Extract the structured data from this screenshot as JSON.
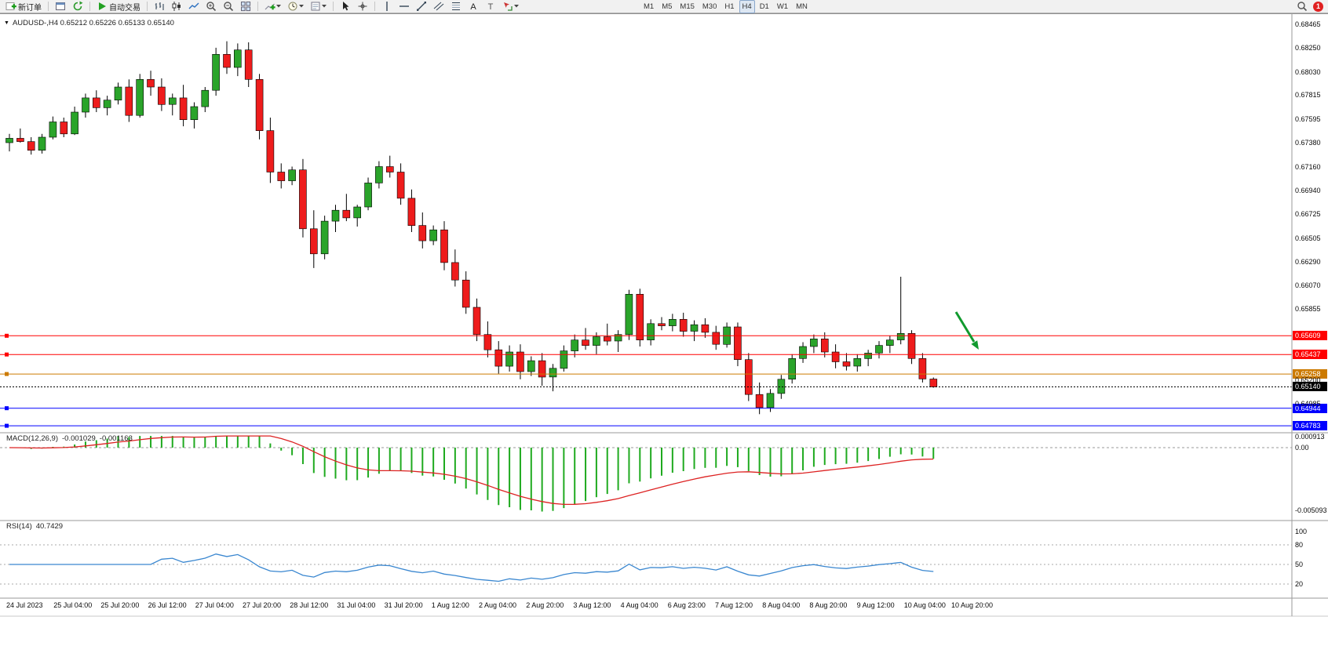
{
  "toolbar": {
    "groups": [
      {
        "items": [
          {
            "name": "new-order-button",
            "icon": "new-order",
            "label": "新订单"
          }
        ]
      },
      {
        "items": [
          {
            "name": "charts-window-button",
            "icon": "window"
          },
          {
            "name": "refresh-button",
            "icon": "refresh"
          }
        ]
      },
      {
        "items": [
          {
            "name": "autotrading-button",
            "icon": "play",
            "label": "自动交易"
          }
        ]
      },
      {
        "items": [
          {
            "name": "bar-chart-button",
            "icon": "bar-chart"
          },
          {
            "name": "candlestick-chart-button",
            "icon": "candle"
          },
          {
            "name": "line-chart-button",
            "icon": "line-chart"
          },
          {
            "name": "zoom-in-button",
            "icon": "zoom-in"
          },
          {
            "name": "zoom-out-button",
            "icon": "zoom-out"
          },
          {
            "name": "tile-windows-button",
            "icon": "tile"
          }
        ]
      },
      {
        "items": [
          {
            "name": "indicators-button",
            "icon": "ind-add",
            "caret": true
          },
          {
            "name": "periods-button",
            "icon": "clock",
            "caret": true
          },
          {
            "name": "templates-button",
            "icon": "template",
            "caret": true
          }
        ]
      },
      {
        "items": [
          {
            "name": "cursor-button",
            "icon": "cursor"
          },
          {
            "name": "crosshair-button",
            "icon": "crosshair"
          }
        ]
      },
      {
        "items": [
          {
            "name": "vertical-line-button",
            "icon": "vline"
          },
          {
            "name": "horizontal-line-button",
            "icon": "hline"
          },
          {
            "name": "trendline-button",
            "icon": "trend"
          },
          {
            "name": "channel-button",
            "icon": "channel"
          },
          {
            "name": "fibonacci-button",
            "icon": "fib"
          },
          {
            "name": "text-button",
            "icon": "text"
          },
          {
            "name": "text-label-button",
            "icon": "label"
          },
          {
            "name": "arrows-button",
            "icon": "arrows",
            "caret": true
          }
        ]
      },
      {
        "spacer": 150,
        "items": [
          {
            "name": "timeframe-m1",
            "text": "M1"
          },
          {
            "name": "timeframe-m5",
            "text": "M5"
          },
          {
            "name": "timeframe-m15",
            "text": "M15"
          },
          {
            "name": "timeframe-m30",
            "text": "M30"
          },
          {
            "name": "timeframe-h1",
            "text": "H1"
          },
          {
            "name": "timeframe-h4",
            "text": "H4",
            "active": true
          },
          {
            "name": "timeframe-d1",
            "text": "D1"
          },
          {
            "name": "timeframe-w1",
            "text": "W1"
          },
          {
            "name": "timeframe-mn",
            "text": "MN"
          }
        ]
      }
    ],
    "right_buttons": [
      {
        "name": "search-button",
        "icon": "search"
      }
    ],
    "notification_count": "1",
    "timeframe_active": "H4"
  },
  "chart": {
    "symbol_header": "AUDUSD-,H4  0.65212 0.65226 0.65133 0.65140",
    "colors": {
      "bull": "#2aa42a",
      "bear": "#ee1c1c",
      "wick": "#000000"
    },
    "y_axis_ticks": [
      "0.68465",
      "0.68250",
      "0.68030",
      "0.67815",
      "0.67595",
      "0.67380",
      "0.67160",
      "0.66940",
      "0.66725",
      "0.66505",
      "0.66290",
      "0.66070",
      "0.65855",
      "0.65200",
      "0.64985"
    ],
    "price_lines": [
      {
        "text": "0.65609",
        "price": 0.65609,
        "color": "#ff0000",
        "style": "solid",
        "marker": true
      },
      {
        "text": "0.65437",
        "price": 0.65437,
        "color": "#ff0000",
        "style": "solid",
        "marker": true
      },
      {
        "text": "0.65258",
        "price": 0.65258,
        "color": "#cc7a00",
        "style": "solid",
        "marker": true
      },
      {
        "text": "0.65140",
        "price": 0.6514,
        "color": "#000000",
        "style": "dotted",
        "marker": false,
        "role": "bid-price"
      },
      {
        "text": "0.64944",
        "price": 0.64944,
        "color": "#0000ff",
        "style": "solid",
        "marker": true
      },
      {
        "text": "0.64783",
        "price": 0.64783,
        "color": "#0000ff",
        "style": "solid",
        "marker": true
      }
    ],
    "annotation_arrow": {
      "color": "#119a2e"
    }
  },
  "macd": {
    "name": "MACD(12,26,9)",
    "value1": "-0.001029",
    "value2": "-0.001163",
    "histogram_color": "#1faa1f",
    "signal_color": "#dd2222",
    "axis": [
      {
        "text": "0.000913",
        "value": 0.000913
      },
      {
        "text": "0.00",
        "value": 0
      },
      {
        "text": "-0.005093",
        "value": -0.005093
      }
    ]
  },
  "rsi": {
    "name": "RSI(14)",
    "value": "40.7429",
    "line_color": "#3a87d0",
    "levels": [
      80,
      50,
      20
    ],
    "axis": [
      {
        "text": "100",
        "value": 100
      },
      {
        "text": "80",
        "value": 80
      },
      {
        "text": "50",
        "value": 50
      },
      {
        "text": "20",
        "value": 20
      }
    ]
  },
  "chart_data": {
    "type": "candlestick",
    "symbol": "AUDUSD-",
    "timeframe": "H4",
    "title": "AUDUSD-,H4",
    "y_range": [
      0.6472,
      0.6853
    ],
    "x_labels": [
      "24 Jul 2023",
      "25 Jul 04:00",
      "25 Jul 20:00",
      "26 Jul 12:00",
      "27 Jul 04:00",
      "27 Jul 20:00",
      "28 Jul 12:00",
      "31 Jul 04:00",
      "31 Jul 20:00",
      "1 Aug 12:00",
      "2 Aug 04:00",
      "2 Aug 20:00",
      "3 Aug 12:00",
      "4 Aug 04:00",
      "6 Aug 23:00",
      "7 Aug 12:00",
      "8 Aug 04:00",
      "8 Aug 20:00",
      "9 Aug 12:00",
      "10 Aug 04:00",
      "10 Aug 20:00"
    ],
    "ohlc": [
      [
        0.6738,
        0.6746,
        0.673,
        0.6742
      ],
      [
        0.6742,
        0.6751,
        0.6738,
        0.6739
      ],
      [
        0.6739,
        0.6743,
        0.6727,
        0.6731
      ],
      [
        0.6731,
        0.6746,
        0.6728,
        0.6743
      ],
      [
        0.6743,
        0.6762,
        0.6741,
        0.6757
      ],
      [
        0.6757,
        0.6761,
        0.6743,
        0.6746
      ],
      [
        0.6746,
        0.6771,
        0.6745,
        0.6766
      ],
      [
        0.6766,
        0.6783,
        0.6761,
        0.6779
      ],
      [
        0.6779,
        0.6786,
        0.6766,
        0.677
      ],
      [
        0.677,
        0.6781,
        0.6763,
        0.6777
      ],
      [
        0.6777,
        0.6793,
        0.6773,
        0.6789
      ],
      [
        0.6789,
        0.6796,
        0.6757,
        0.6763
      ],
      [
        0.6763,
        0.6801,
        0.6761,
        0.6796
      ],
      [
        0.6796,
        0.6804,
        0.6781,
        0.6789
      ],
      [
        0.6789,
        0.6797,
        0.6767,
        0.6773
      ],
      [
        0.6773,
        0.6783,
        0.6763,
        0.6779
      ],
      [
        0.6779,
        0.6791,
        0.6753,
        0.6759
      ],
      [
        0.6759,
        0.6775,
        0.6751,
        0.6771
      ],
      [
        0.6771,
        0.6789,
        0.6766,
        0.6786
      ],
      [
        0.6786,
        0.6825,
        0.6781,
        0.6819
      ],
      [
        0.6819,
        0.6831,
        0.6801,
        0.6807
      ],
      [
        0.6807,
        0.6829,
        0.6799,
        0.6823
      ],
      [
        0.6823,
        0.683,
        0.6789,
        0.6796
      ],
      [
        0.6796,
        0.6801,
        0.6741,
        0.6749
      ],
      [
        0.6749,
        0.6761,
        0.6701,
        0.6711
      ],
      [
        0.6711,
        0.6719,
        0.6696,
        0.6703
      ],
      [
        0.6703,
        0.6716,
        0.6699,
        0.6713
      ],
      [
        0.6713,
        0.6723,
        0.6651,
        0.6659
      ],
      [
        0.6659,
        0.6676,
        0.6623,
        0.6636
      ],
      [
        0.6636,
        0.6671,
        0.6631,
        0.6666
      ],
      [
        0.6666,
        0.6681,
        0.6656,
        0.6676
      ],
      [
        0.6676,
        0.6691,
        0.6666,
        0.6669
      ],
      [
        0.6669,
        0.6681,
        0.6661,
        0.6679
      ],
      [
        0.6679,
        0.6706,
        0.6676,
        0.6701
      ],
      [
        0.6701,
        0.6721,
        0.6696,
        0.6716
      ],
      [
        0.6716,
        0.6726,
        0.6706,
        0.6711
      ],
      [
        0.6711,
        0.6719,
        0.6681,
        0.6687
      ],
      [
        0.6687,
        0.6695,
        0.6656,
        0.6662
      ],
      [
        0.6662,
        0.6674,
        0.6641,
        0.6648
      ],
      [
        0.6648,
        0.6662,
        0.6644,
        0.6658
      ],
      [
        0.6658,
        0.6666,
        0.6621,
        0.6628
      ],
      [
        0.6628,
        0.664,
        0.6606,
        0.6612
      ],
      [
        0.6612,
        0.662,
        0.6581,
        0.6587
      ],
      [
        0.6587,
        0.6595,
        0.6556,
        0.6562
      ],
      [
        0.6562,
        0.6574,
        0.6541,
        0.6548
      ],
      [
        0.6548,
        0.6556,
        0.6526,
        0.6533
      ],
      [
        0.6533,
        0.6552,
        0.6528,
        0.6546
      ],
      [
        0.6546,
        0.6553,
        0.6521,
        0.6528
      ],
      [
        0.6528,
        0.6542,
        0.6524,
        0.6538
      ],
      [
        0.6538,
        0.6545,
        0.6515,
        0.6523
      ],
      [
        0.6523,
        0.6535,
        0.651,
        0.6531
      ],
      [
        0.6531,
        0.6552,
        0.6528,
        0.6547
      ],
      [
        0.6547,
        0.6562,
        0.6541,
        0.6557
      ],
      [
        0.6557,
        0.6568,
        0.6548,
        0.6552
      ],
      [
        0.6552,
        0.6564,
        0.6544,
        0.656
      ],
      [
        0.656,
        0.6572,
        0.6552,
        0.6556
      ],
      [
        0.6556,
        0.6566,
        0.6546,
        0.6562
      ],
      [
        0.6562,
        0.6603,
        0.6557,
        0.6599
      ],
      [
        0.6599,
        0.6604,
        0.6551,
        0.6557
      ],
      [
        0.6557,
        0.6576,
        0.6552,
        0.6572
      ],
      [
        0.6572,
        0.6578,
        0.6566,
        0.657
      ],
      [
        0.657,
        0.6581,
        0.6565,
        0.6576
      ],
      [
        0.6576,
        0.6582,
        0.656,
        0.6565
      ],
      [
        0.6565,
        0.6575,
        0.6556,
        0.6571
      ],
      [
        0.6571,
        0.6577,
        0.6559,
        0.6564
      ],
      [
        0.6564,
        0.657,
        0.6548,
        0.6553
      ],
      [
        0.6553,
        0.6573,
        0.655,
        0.6569
      ],
      [
        0.6569,
        0.6573,
        0.6533,
        0.6539
      ],
      [
        0.6539,
        0.6545,
        0.6501,
        0.6507
      ],
      [
        0.6507,
        0.6518,
        0.6489,
        0.6495
      ],
      [
        0.6495,
        0.6512,
        0.6491,
        0.6508
      ],
      [
        0.6508,
        0.6525,
        0.6503,
        0.6521
      ],
      [
        0.6521,
        0.6544,
        0.6517,
        0.654
      ],
      [
        0.654,
        0.6555,
        0.6536,
        0.6551
      ],
      [
        0.6551,
        0.6562,
        0.6545,
        0.6558
      ],
      [
        0.6558,
        0.6564,
        0.6541,
        0.6546
      ],
      [
        0.6546,
        0.6553,
        0.6531,
        0.6537
      ],
      [
        0.6537,
        0.6545,
        0.6529,
        0.6533
      ],
      [
        0.6533,
        0.6544,
        0.6528,
        0.654
      ],
      [
        0.654,
        0.6548,
        0.6533,
        0.6545
      ],
      [
        0.6545,
        0.6556,
        0.654,
        0.6552
      ],
      [
        0.6552,
        0.6561,
        0.6545,
        0.6557
      ],
      [
        0.6557,
        0.6615,
        0.6553,
        0.6563
      ],
      [
        0.6563,
        0.6566,
        0.6535,
        0.654
      ],
      [
        0.654,
        0.6545,
        0.6518,
        0.65212
      ],
      [
        0.65212,
        0.65226,
        0.65133,
        0.6514
      ]
    ],
    "indicators": [
      {
        "name": "MACD",
        "params": "12,26,9",
        "displayed_values": [
          "-0.001029",
          "-0.001163"
        ]
      },
      {
        "name": "RSI",
        "params": "14",
        "displayed_value": "40.7429"
      }
    ]
  }
}
